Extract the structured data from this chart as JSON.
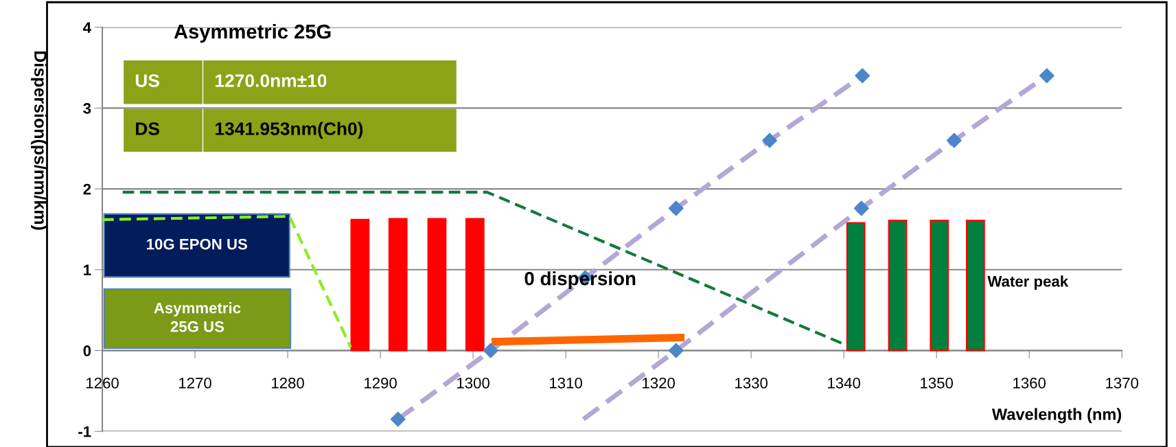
{
  "chart_data": {
    "type": "scatter",
    "title": "Asymmetric 25G",
    "xlabel": "Wavelength (nm)",
    "ylabel": "Dispersion(ps/nm/km)",
    "xlim": [
      1260,
      1370
    ],
    "ylim": [
      -1,
      4
    ],
    "xticks": [
      1260,
      1270,
      1280,
      1290,
      1300,
      1310,
      1320,
      1330,
      1340,
      1350,
      1360,
      1370
    ],
    "yticks": [
      -1,
      0,
      1,
      2,
      3,
      4
    ],
    "grid": "y",
    "annotations": [
      "US",
      "1270.0nm±10",
      "DS",
      "1341.953nm(Ch0)",
      "10G EPON US",
      "Asymmetric\n25G US",
      "0 dispersion",
      "Water peak"
    ],
    "series": [
      {
        "type": "bar",
        "color": "#ff0000",
        "x": [
          1287.8,
          1291.9,
          1296.1,
          1300.2
        ],
        "values": [
          1.62,
          1.63,
          1.63,
          1.63
        ]
      },
      {
        "type": "bar",
        "color": "#007f3f",
        "x": [
          1341.3,
          1345.8,
          1350.3,
          1354.2
        ],
        "values": [
          1.58,
          1.61,
          1.61,
          1.61
        ]
      },
      {
        "type": "line",
        "color": "#b4a7d6",
        "line_style": "dashed",
        "marker": "none",
        "x": [
          1291.9,
          1301.9,
          1312.1,
          1321.9,
          1332.0,
          1342.0
        ],
        "values": [
          -0.85,
          0,
          0.9,
          1.76,
          2.6,
          3.4
        ]
      },
      {
        "type": "line",
        "color": "#b4a7d6",
        "line_style": "dashed",
        "marker": "none",
        "x": [
          1311.9,
          1321.9,
          1341.9,
          1351.9,
          1361.9
        ],
        "values": [
          -0.85,
          0,
          1.76,
          2.6,
          3.4
        ]
      },
      {
        "color": "#4a86c8",
        "marker": "diamond",
        "x": [
          1291.9,
          1301.9,
          1312.1,
          1321.9,
          1332.0,
          1342.0
        ],
        "values": [
          -0.85,
          0,
          0.9,
          1.76,
          2.6,
          3.4
        ]
      },
      {
        "color": "#4a86c8",
        "marker": "diamond",
        "x": [
          1321.9,
          1341.9,
          1351.9,
          1361.9
        ],
        "values": [
          0,
          1.76,
          2.6,
          3.4
        ]
      },
      {
        "type": "line",
        "color": "#ff6600",
        "line_style": "solid",
        "marker": "none",
        "x": [
          1302.4,
          1322.4
        ],
        "values": [
          0.11,
          0.16
        ]
      },
      {
        "type": "line",
        "color": "#127a3a",
        "line_style": "dashed",
        "marker": "none",
        "x": [
          1262.2,
          1301.5,
          1341.0
        ],
        "values": [
          1.96,
          1.96,
          0.03
        ]
      },
      {
        "type": "line",
        "color": "#88ee22",
        "line_style": "dashed",
        "marker": "none",
        "x": [
          1260,
          1280.2,
          1286.8
        ],
        "values": [
          1.62,
          1.66,
          0.04
        ]
      }
    ]
  }
}
